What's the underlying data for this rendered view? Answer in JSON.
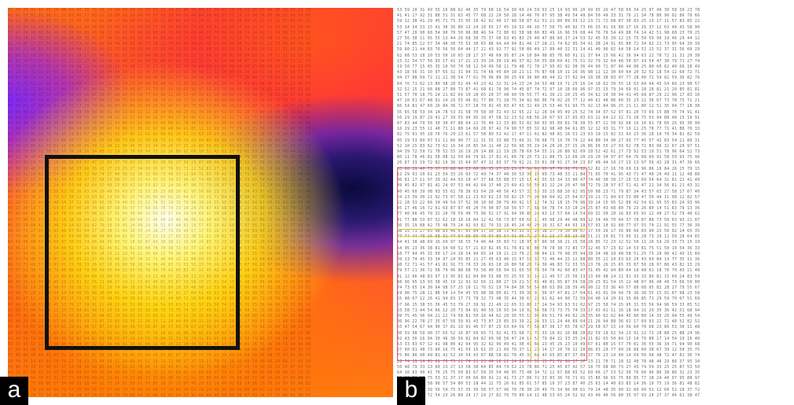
{
  "figure": {
    "panels": [
      {
        "id": "a",
        "label": "a"
      },
      {
        "id": "b",
        "label": "b"
      }
    ],
    "colors": {
      "roi_black": "#111111",
      "roi_red": "#e05a6a",
      "band_yellow": "#e8c040",
      "label_bg": "#000000",
      "label_text": "#ffffff"
    }
  }
}
